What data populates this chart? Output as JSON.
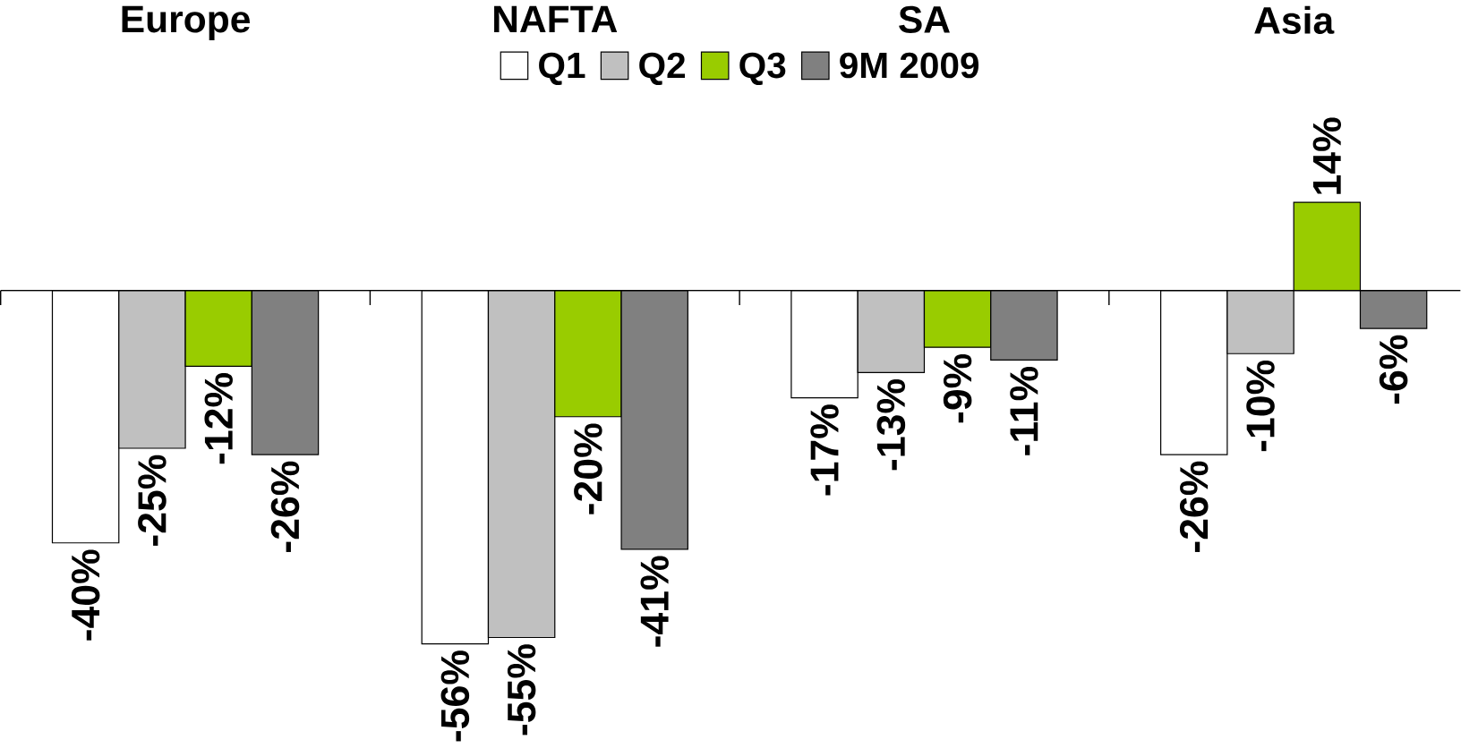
{
  "chart_data": {
    "type": "bar",
    "categories": [
      "Europe",
      "NAFTA",
      "SA",
      "Asia"
    ],
    "series": [
      {
        "name": "Q1",
        "color": "#ffffff",
        "values": [
          -40,
          -56,
          -17,
          -26
        ],
        "value_labels": [
          "-40%",
          "-56%",
          "-17%",
          "-26%"
        ]
      },
      {
        "name": "Q2",
        "color": "#c0c0c0",
        "values": [
          -25,
          -55,
          -13,
          -10
        ],
        "value_labels": [
          "-25%",
          "-55%",
          "-13%",
          "-10%"
        ]
      },
      {
        "name": "Q3",
        "color": "#99cc00",
        "values": [
          -12,
          -20,
          -9,
          14
        ],
        "value_labels": [
          "-12%",
          "-20%",
          "-9%",
          "14%"
        ]
      },
      {
        "name": "9M 2009",
        "color": "#808080",
        "values": [
          -26,
          -41,
          -11,
          -6
        ],
        "value_labels": [
          "-26%",
          "-41%",
          "-11%",
          "-6%"
        ]
      }
    ],
    "legend": "top"
  }
}
